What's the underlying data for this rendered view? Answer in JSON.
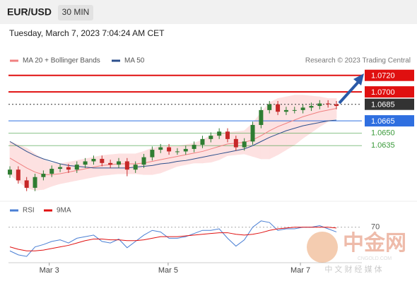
{
  "header": {
    "symbol": "EUR/USD",
    "timeframe": "30 MIN",
    "datetime": "Tuesday, March 7, 2023 7:04:24 AM CET"
  },
  "chart_data": [
    {
      "type": "candlestick",
      "credit": "Research © 2023 Trading Central",
      "xlim": [
        0,
        39
      ],
      "ylim": [
        1.0572,
        1.073
      ],
      "up_color": "#2f7d32",
      "down_color": "#c62828",
      "open": [
        1.06,
        1.0606,
        1.0593,
        1.0584,
        1.0597,
        1.0601,
        1.0607,
        1.0609,
        1.0606,
        1.0612,
        1.0616,
        1.0619,
        1.0614,
        1.0612,
        1.0616,
        1.0606,
        1.0612,
        1.0621,
        1.063,
        1.0633,
        1.0628,
        1.0628,
        1.0631,
        1.0636,
        1.0643,
        1.0647,
        1.0652,
        1.0643,
        1.0633,
        1.064,
        1.066,
        1.0678,
        1.0685,
        1.0676,
        1.0678,
        1.0678,
        1.0681,
        1.0683,
        1.0686,
        1.0685
      ],
      "high": [
        1.061,
        1.061,
        1.0597,
        1.0601,
        1.0605,
        1.0611,
        1.0613,
        1.0613,
        1.0616,
        1.062,
        1.0623,
        1.0623,
        1.0618,
        1.062,
        1.062,
        1.0616,
        1.0625,
        1.0634,
        1.0637,
        1.0637,
        1.0632,
        1.0635,
        1.064,
        1.0647,
        1.0651,
        1.0656,
        1.0656,
        1.0647,
        1.0644,
        1.0664,
        1.0682,
        1.0689,
        1.0689,
        1.0682,
        1.0682,
        1.0685,
        1.0687,
        1.069,
        1.069,
        1.0689
      ],
      "low": [
        1.0596,
        1.0589,
        1.058,
        1.058,
        1.0593,
        1.0597,
        1.0603,
        1.0602,
        1.0602,
        1.0608,
        1.0612,
        1.061,
        1.0608,
        1.0608,
        1.0598,
        1.0602,
        1.0608,
        1.0617,
        1.0626,
        1.0624,
        1.0624,
        1.0624,
        1.0627,
        1.0632,
        1.0639,
        1.0643,
        1.0639,
        1.0629,
        1.0629,
        1.0636,
        1.0656,
        1.0674,
        1.0672,
        1.0672,
        1.0674,
        1.0674,
        1.0677,
        1.0679,
        1.0681,
        1.0679
      ],
      "close": [
        1.0606,
        1.0593,
        1.0584,
        1.0597,
        1.0601,
        1.0607,
        1.0609,
        1.0606,
        1.0612,
        1.0616,
        1.0619,
        1.0614,
        1.0612,
        1.0616,
        1.0606,
        1.0612,
        1.0621,
        1.063,
        1.0633,
        1.0628,
        1.0628,
        1.0631,
        1.0636,
        1.0643,
        1.0647,
        1.0652,
        1.0643,
        1.0633,
        1.064,
        1.066,
        1.0678,
        1.0685,
        1.0676,
        1.0678,
        1.0678,
        1.0681,
        1.0683,
        1.0686,
        1.0685,
        1.0683
      ],
      "series": [
        {
          "name": "MA 20 + Bollinger Bands",
          "color": "#f08080",
          "band_color": "#fde1e1",
          "values": [
            1.062,
            1.0614,
            1.0608,
            1.0603,
            1.06,
            1.06,
            1.0601,
            1.0603,
            1.0605,
            1.0607,
            1.0609,
            1.0611,
            1.0612,
            1.0613,
            1.0613,
            1.0613,
            1.0614,
            1.0616,
            1.0618,
            1.062,
            1.0622,
            1.0624,
            1.0626,
            1.0628,
            1.0631,
            1.0634,
            1.0637,
            1.0638,
            1.0639,
            1.0642,
            1.0647,
            1.0653,
            1.0658,
            1.0662,
            1.0666,
            1.067,
            1.0673,
            1.0676,
            1.0678,
            1.068
          ],
          "upper": [
            1.064,
            1.0636,
            1.0632,
            1.0625,
            1.0618,
            1.0614,
            1.0613,
            1.0615,
            1.0617,
            1.0619,
            1.0621,
            1.0623,
            1.0624,
            1.0625,
            1.0625,
            1.0625,
            1.0628,
            1.0632,
            1.0634,
            1.0634,
            1.0634,
            1.0636,
            1.0638,
            1.0642,
            1.0647,
            1.065,
            1.0651,
            1.0652,
            1.0653,
            1.0662,
            1.0675,
            1.0687,
            1.0692,
            1.0694,
            1.0696,
            1.0696,
            1.0695,
            1.0694,
            1.0692,
            1.0692
          ],
          "lower": [
            1.06,
            1.0592,
            1.0584,
            1.0581,
            1.0582,
            1.0586,
            1.0589,
            1.0591,
            1.0593,
            1.0595,
            1.0597,
            1.0599,
            1.06,
            1.0601,
            1.0601,
            1.0601,
            1.06,
            1.06,
            1.0602,
            1.0606,
            1.061,
            1.0612,
            1.0614,
            1.0614,
            1.0615,
            1.0618,
            1.0623,
            1.0624,
            1.0625,
            1.0622,
            1.0619,
            1.0619,
            1.0624,
            1.063,
            1.0636,
            1.0644,
            1.0651,
            1.0658,
            1.0664,
            1.0668
          ]
        },
        {
          "name": "MA 50",
          "color": "#2c4f8c",
          "values": [
            1.064,
            1.0634,
            1.0628,
            1.0623,
            1.0619,
            1.0616,
            1.0613,
            1.0611,
            1.061,
            1.0609,
            1.0608,
            1.0608,
            1.0608,
            1.0608,
            1.0608,
            1.0609,
            1.061,
            1.0611,
            1.0613,
            1.0614,
            1.0616,
            1.0617,
            1.0619,
            1.0621,
            1.0623,
            1.0625,
            1.0627,
            1.0629,
            1.0631,
            1.0635,
            1.064,
            1.0645,
            1.0649,
            1.0653,
            1.0656,
            1.0659,
            1.0661,
            1.0663,
            1.0665,
            1.0666
          ]
        }
      ],
      "levels": [
        {
          "value": 1.072,
          "label": "1.0720",
          "color": "#e01010",
          "kind": "box"
        },
        {
          "value": 1.07,
          "label": "1.0700",
          "color": "#e01010",
          "kind": "box"
        },
        {
          "value": 1.0685,
          "label": "1.0685",
          "color": "#333333",
          "kind": "current"
        },
        {
          "value": 1.0665,
          "label": "1.0665",
          "color": "#2f6fe0",
          "kind": "box"
        },
        {
          "value": 1.065,
          "label": "1.0650",
          "color": "#3a9a3a",
          "kind": "text"
        },
        {
          "value": 1.0635,
          "label": "1.0635",
          "color": "#3a9a3a",
          "kind": "text"
        }
      ]
    },
    {
      "type": "line",
      "xlim": [
        0,
        39
      ],
      "ylim": [
        25,
        85
      ],
      "yticks": [
        70
      ],
      "xticks": [
        {
          "value": 4.7,
          "label": "Mar 3"
        },
        {
          "value": 18.9,
          "label": "Mar 5"
        },
        {
          "value": 34.7,
          "label": "Mar 7"
        }
      ],
      "series": [
        {
          "name": "RSI",
          "color": "#4a7fd4",
          "values": [
            40,
            35,
            33,
            45,
            48,
            52,
            54,
            50,
            56,
            58,
            60,
            52,
            50,
            55,
            44,
            52,
            60,
            66,
            64,
            56,
            56,
            58,
            62,
            66,
            66,
            68,
            56,
            46,
            54,
            70,
            78,
            76,
            66,
            68,
            68,
            70,
            70,
            72,
            68,
            64
          ]
        },
        {
          "name": "9MA",
          "color": "#e01010",
          "values": [
            45,
            42,
            40,
            40,
            41,
            43,
            45,
            47,
            50,
            53,
            55,
            55,
            54,
            54,
            53,
            53,
            54,
            56,
            58,
            58,
            58,
            59,
            60,
            61,
            62,
            63,
            63,
            61,
            60,
            61,
            63,
            66,
            68,
            69,
            70,
            70,
            70,
            70,
            70,
            69
          ]
        }
      ]
    }
  ],
  "watermark": {
    "name": "中金网",
    "site": "CNGOLD.COM",
    "tagline": "中 文 财 经 媒 体"
  }
}
